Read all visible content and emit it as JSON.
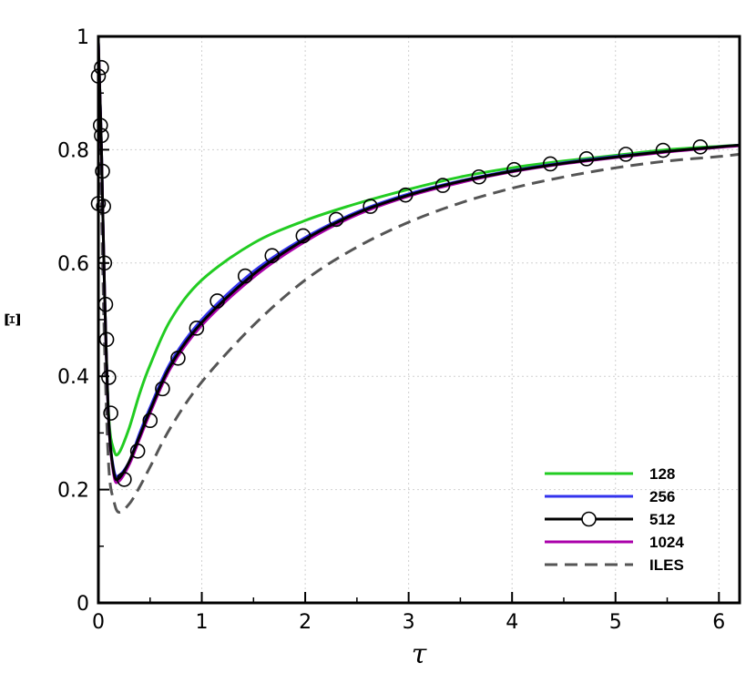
{
  "chart_data": {
    "type": "line",
    "xlabel": "τ",
    "ylabel": "Ξ",
    "xlim": [
      0,
      6.2
    ],
    "ylim": [
      0,
      1
    ],
    "xticks": [
      0,
      1,
      2,
      3,
      4,
      5,
      6
    ],
    "yticks": [
      0,
      0.2,
      0.4,
      0.6,
      0.8,
      1
    ],
    "xtick_labels": [
      "0",
      "1",
      "2",
      "3",
      "4",
      "5",
      "6"
    ],
    "ytick_labels": [
      "0",
      "0.2",
      "0.4",
      "0.6",
      "0.8",
      "1"
    ],
    "grid": true,
    "legend_position": "bottom-right",
    "series": [
      {
        "name": "128",
        "color": "#22cc22",
        "style": "solid",
        "x": [
          0,
          0.03,
          0.06,
          0.1,
          0.15,
          0.2,
          0.3,
          0.4,
          0.5,
          0.7,
          1.0,
          1.5,
          2.0,
          2.5,
          3.0,
          3.5,
          4.0,
          4.5,
          5.0,
          5.5,
          6.0,
          6.2
        ],
        "y": [
          0.99,
          0.8,
          0.55,
          0.33,
          0.27,
          0.265,
          0.31,
          0.37,
          0.42,
          0.5,
          0.57,
          0.635,
          0.675,
          0.705,
          0.73,
          0.752,
          0.768,
          0.78,
          0.79,
          0.8,
          0.806,
          0.808
        ]
      },
      {
        "name": "256",
        "color": "#3333ee",
        "style": "solid",
        "x": [
          0,
          0.03,
          0.06,
          0.1,
          0.15,
          0.2,
          0.3,
          0.4,
          0.5,
          0.7,
          1.0,
          1.5,
          2.0,
          2.5,
          3.0,
          3.5,
          4.0,
          4.5,
          5.0,
          5.5,
          6.0,
          6.2
        ],
        "y": [
          0.99,
          0.8,
          0.55,
          0.32,
          0.235,
          0.225,
          0.25,
          0.3,
          0.345,
          0.425,
          0.5,
          0.585,
          0.645,
          0.69,
          0.722,
          0.745,
          0.763,
          0.777,
          0.788,
          0.797,
          0.805,
          0.808
        ]
      },
      {
        "name": "512",
        "color": "#000000",
        "style": "solid",
        "marker": "circle",
        "x": [
          0,
          0.03,
          0.06,
          0.1,
          0.15,
          0.2,
          0.3,
          0.4,
          0.5,
          0.7,
          1.0,
          1.5,
          2.0,
          2.5,
          3.0,
          3.5,
          4.0,
          4.5,
          5.0,
          5.5,
          6.0,
          6.2
        ],
        "y": [
          0.99,
          0.8,
          0.55,
          0.32,
          0.23,
          0.22,
          0.25,
          0.295,
          0.34,
          0.42,
          0.495,
          0.58,
          0.642,
          0.688,
          0.72,
          0.744,
          0.762,
          0.776,
          0.787,
          0.797,
          0.805,
          0.808
        ]
      },
      {
        "name": "1024",
        "color": "#aa00aa",
        "style": "solid",
        "x": [
          0,
          0.03,
          0.06,
          0.1,
          0.15,
          0.2,
          0.3,
          0.4,
          0.5,
          0.7,
          1.0,
          1.5,
          2.0,
          2.5,
          3.0,
          3.5,
          4.0,
          4.5,
          5.0,
          5.5,
          6.0,
          6.2
        ],
        "y": [
          0.99,
          0.8,
          0.55,
          0.32,
          0.225,
          0.215,
          0.245,
          0.29,
          0.335,
          0.415,
          0.49,
          0.575,
          0.638,
          0.685,
          0.718,
          0.742,
          0.761,
          0.775,
          0.786,
          0.796,
          0.804,
          0.807
        ]
      },
      {
        "name": "ILES",
        "color": "#555555",
        "style": "dashed",
        "x": [
          0,
          0.03,
          0.06,
          0.1,
          0.15,
          0.2,
          0.3,
          0.4,
          0.5,
          0.7,
          1.0,
          1.5,
          2.0,
          2.5,
          3.0,
          3.5,
          4.0,
          4.5,
          5.0,
          5.5,
          6.0,
          6.2
        ],
        "y": [
          0.99,
          0.7,
          0.45,
          0.24,
          0.18,
          0.16,
          0.175,
          0.205,
          0.24,
          0.31,
          0.39,
          0.49,
          0.57,
          0.628,
          0.672,
          0.706,
          0.732,
          0.752,
          0.768,
          0.78,
          0.788,
          0.792
        ]
      }
    ],
    "markers_512": {
      "x": [
        0.0,
        0.0,
        0.02,
        0.03,
        0.03,
        0.04,
        0.05,
        0.06,
        0.07,
        0.08,
        0.1,
        0.12,
        0.25,
        0.38,
        0.5,
        0.62,
        0.77,
        0.95,
        1.15,
        1.42,
        1.68,
        1.98,
        2.3,
        2.63,
        2.97,
        3.33,
        3.68,
        4.02,
        4.37,
        4.72,
        5.1,
        5.46,
        5.82
      ],
      "y": [
        0.93,
        0.705,
        0.843,
        0.945,
        0.825,
        0.762,
        0.7,
        0.6,
        0.527,
        0.465,
        0.398,
        0.335,
        0.218,
        0.268,
        0.322,
        0.378,
        0.432,
        0.485,
        0.533,
        0.577,
        0.613,
        0.648,
        0.677,
        0.7,
        0.72,
        0.737,
        0.752,
        0.765,
        0.775,
        0.784,
        0.792,
        0.799,
        0.805
      ]
    }
  }
}
